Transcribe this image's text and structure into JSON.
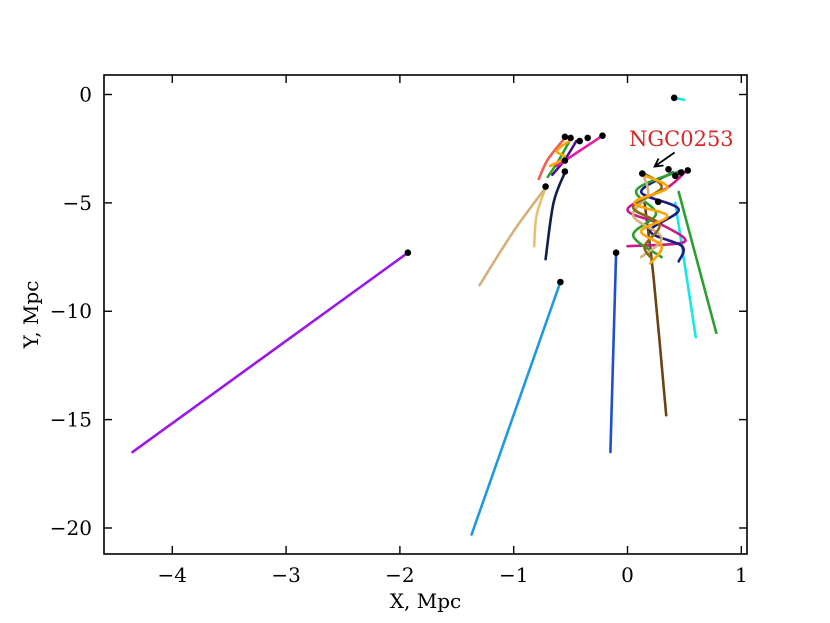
{
  "chart_data": {
    "type": "line",
    "title": "",
    "xlabel": "X, Mpc",
    "ylabel": "Y, Mpc",
    "xlim": [
      -4.6,
      1.05
    ],
    "ylim": [
      -21.2,
      0.9
    ],
    "xticks": [
      -4,
      -3,
      -2,
      -1,
      0,
      1
    ],
    "yticks": [
      0,
      -5,
      -10,
      -15,
      -20
    ],
    "xtick_labels": [
      "−4",
      "−3",
      "−2",
      "−1",
      "0",
      "1"
    ],
    "ytick_labels": [
      "0",
      "−5",
      "−10",
      "−15",
      "−20"
    ],
    "grid": false,
    "annotation": {
      "text": "NGC0253",
      "color": "#d62728",
      "points_to": [
        0.15,
        -3.6
      ]
    },
    "series": [
      {
        "color": "#9b19e6",
        "points": [
          [
            -1.93,
            -7.3
          ],
          [
            -4.35,
            -16.5
          ]
        ]
      },
      {
        "color": "#1f99e0",
        "points": [
          [
            -0.59,
            -8.65
          ],
          [
            -1.37,
            -20.3
          ]
        ]
      },
      {
        "color": "#1f4fd0",
        "points": [
          [
            -0.1,
            -7.3
          ],
          [
            -0.15,
            -16.5
          ]
        ]
      },
      {
        "color": "#6b4213",
        "points": [
          [
            0.15,
            -5.0
          ],
          [
            0.23,
            -8.5
          ],
          [
            0.34,
            -14.8
          ]
        ]
      },
      {
        "color": "#19e6e6",
        "points": [
          [
            0.42,
            -5.0
          ],
          [
            0.6,
            -11.2
          ]
        ]
      },
      {
        "color": "#2ca02c",
        "points": [
          [
            0.45,
            -4.5
          ],
          [
            0.78,
            -11.0
          ]
        ]
      },
      {
        "color": "#19e6e6",
        "points": [
          [
            0.41,
            -0.15
          ],
          [
            0.5,
            -0.25
          ]
        ]
      },
      {
        "color": "#e8c070",
        "points": [
          [
            -0.72,
            -4.3
          ],
          [
            -0.8,
            -5.6
          ],
          [
            -0.82,
            -7.0
          ]
        ]
      },
      {
        "color": "#d2b27a",
        "points": [
          [
            -0.72,
            -4.3
          ],
          [
            -1.0,
            -6.3
          ],
          [
            -1.3,
            -8.8
          ]
        ]
      },
      {
        "color": "#0c1f4f",
        "points": [
          [
            -0.55,
            -3.6
          ],
          [
            -0.65,
            -5.0
          ],
          [
            -0.72,
            -7.6
          ]
        ]
      },
      {
        "color": "#f06050",
        "points": [
          [
            -0.55,
            -2.0
          ],
          [
            -0.7,
            -3.0
          ],
          [
            -0.78,
            -3.9
          ]
        ]
      },
      {
        "color": "#2ca02c",
        "points": [
          [
            -0.5,
            -2.05
          ],
          [
            -0.6,
            -3.0
          ],
          [
            -0.7,
            -3.8
          ]
        ]
      },
      {
        "color": "#4b0f8a",
        "points": [
          [
            -0.45,
            -2.15
          ],
          [
            -0.55,
            -3.0
          ],
          [
            -0.66,
            -3.7
          ]
        ]
      },
      {
        "color": "#e81aa8",
        "points": [
          [
            -0.22,
            -1.9
          ],
          [
            -0.45,
            -2.7
          ],
          [
            -0.62,
            -3.3
          ]
        ]
      },
      {
        "color": "#ffa500",
        "points": [
          [
            -0.5,
            -2.1
          ],
          [
            -0.62,
            -2.6
          ],
          [
            -0.55,
            -2.9
          ],
          [
            -0.68,
            -3.3
          ]
        ]
      },
      {
        "color": "#c81a8a",
        "points": [
          [
            0.53,
            -3.45
          ],
          [
            0.35,
            -4.3
          ],
          [
            0.0,
            -5.3
          ],
          [
            0.3,
            -6.0
          ],
          [
            0.5,
            -6.8
          ],
          [
            0.0,
            -7.0
          ]
        ]
      },
      {
        "color": "#1f1a8a",
        "points": [
          [
            0.4,
            -3.6
          ],
          [
            0.12,
            -4.5
          ],
          [
            0.45,
            -5.3
          ],
          [
            0.2,
            -6.3
          ],
          [
            0.48,
            -7.0
          ],
          [
            0.45,
            -7.7
          ]
        ]
      },
      {
        "color": "#2ca02c",
        "points": [
          [
            0.48,
            -3.5
          ],
          [
            0.08,
            -4.4
          ],
          [
            0.25,
            -5.5
          ],
          [
            0.05,
            -6.5
          ],
          [
            0.3,
            -7.5
          ]
        ]
      },
      {
        "color": "#d2b27a",
        "points": [
          [
            0.13,
            -3.6
          ],
          [
            0.18,
            -4.6
          ],
          [
            0.05,
            -5.6
          ],
          [
            0.3,
            -6.6
          ],
          [
            0.12,
            -7.5
          ]
        ]
      },
      {
        "color": "#8b6914",
        "points": [
          [
            0.13,
            -3.6
          ],
          [
            0.3,
            -4.3
          ],
          [
            0.05,
            -5.2
          ],
          [
            0.28,
            -6.0
          ],
          [
            0.15,
            -7.0
          ],
          [
            0.22,
            -7.6
          ]
        ]
      },
      {
        "color": "#ffa500",
        "points": [
          [
            0.13,
            -3.7
          ],
          [
            0.35,
            -4.3
          ],
          [
            0.06,
            -5.0
          ],
          [
            0.35,
            -5.6
          ],
          [
            0.12,
            -6.3
          ],
          [
            0.3,
            -7.0
          ],
          [
            0.2,
            -7.8
          ]
        ]
      }
    ],
    "markers": [
      [
        -1.93,
        -7.3
      ],
      [
        -0.59,
        -8.65
      ],
      [
        -0.1,
        -7.3
      ],
      [
        -0.72,
        -4.25
      ],
      [
        -0.55,
        -3.55
      ],
      [
        -0.55,
        -3.05
      ],
      [
        -0.55,
        -1.95
      ],
      [
        -0.5,
        -2.0
      ],
      [
        -0.42,
        -2.15
      ],
      [
        -0.35,
        -2.0
      ],
      [
        -0.22,
        -1.9
      ],
      [
        0.41,
        -0.15
      ],
      [
        0.13,
        -3.65
      ],
      [
        0.36,
        -3.45
      ],
      [
        0.42,
        -3.75
      ],
      [
        0.47,
        -3.6
      ],
      [
        0.53,
        -3.5
      ],
      [
        0.27,
        -4.95
      ]
    ]
  }
}
